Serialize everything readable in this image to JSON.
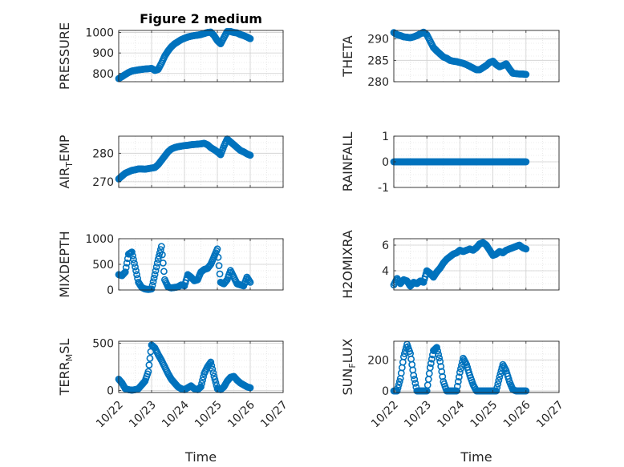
{
  "figure": {
    "title": "Figure 2 medium",
    "marker_color": "#0072BD"
  },
  "chart_data": [
    {
      "type": "scatter",
      "title": "Figure 2 medium",
      "ylabel": "PRESSURE",
      "ylabel_sub": "",
      "ylim": [
        760,
        1010
      ],
      "yticks": [
        800,
        900,
        1000
      ],
      "xlim": [
        0,
        5
      ],
      "xticks": [],
      "xlabel": "",
      "grid": true,
      "x": [
        0,
        0.1,
        0.2,
        0.3,
        0.4,
        0.5,
        0.6,
        0.7,
        0.8,
        0.9,
        1.0,
        1.1,
        1.2,
        1.3,
        1.4,
        1.5,
        1.6,
        1.7,
        1.8,
        1.9,
        2.0,
        2.1,
        2.2,
        2.3,
        2.4,
        2.5,
        2.6,
        2.7,
        2.8,
        2.9,
        3.0,
        3.1,
        3.2,
        3.3,
        3.4,
        3.5,
        3.6,
        3.7,
        3.8,
        3.9,
        4.0
      ],
      "y": [
        775,
        785,
        795,
        805,
        812,
        815,
        818,
        820,
        822,
        823,
        825,
        815,
        820,
        850,
        885,
        910,
        930,
        945,
        955,
        965,
        972,
        978,
        982,
        985,
        987,
        990,
        995,
        1000,
        1002,
        985,
        960,
        945,
        975,
        1005,
        1005,
        1000,
        998,
        990,
        985,
        978,
        970
      ]
    },
    {
      "type": "scatter",
      "title": "",
      "ylabel": "THETA",
      "ylabel_sub": "",
      "ylim": [
        280,
        292
      ],
      "yticks": [
        280,
        285,
        290
      ],
      "xlim": [
        0,
        5
      ],
      "xticks": [],
      "xlabel": "",
      "grid": true,
      "x": [
        0,
        0.1,
        0.2,
        0.3,
        0.4,
        0.5,
        0.6,
        0.7,
        0.8,
        0.9,
        1.0,
        1.1,
        1.2,
        1.3,
        1.4,
        1.5,
        1.6,
        1.7,
        1.8,
        1.9,
        2.0,
        2.1,
        2.2,
        2.3,
        2.4,
        2.5,
        2.6,
        2.7,
        2.8,
        2.9,
        3.0,
        3.1,
        3.2,
        3.3,
        3.4,
        3.5,
        3.6,
        3.7,
        3.8,
        3.9,
        4.0
      ],
      "y": [
        291.5,
        291,
        290.8,
        290.5,
        290.4,
        290.3,
        290.5,
        290.8,
        291.2,
        291.6,
        291.0,
        289.5,
        288.0,
        287.2,
        286.5,
        285.8,
        285.5,
        285.0,
        284.8,
        284.7,
        284.5,
        284.3,
        284.0,
        283.6,
        283.2,
        282.8,
        282.8,
        283.3,
        283.8,
        284.5,
        284.8,
        284.0,
        283.5,
        283.8,
        284.2,
        283.0,
        282.0,
        281.9,
        281.8,
        281.8,
        281.7
      ]
    },
    {
      "type": "scatter",
      "title": "",
      "ylabel": "AIR",
      "ylabel_sub": "T",
      "ylabel_post": "EMP",
      "ylim": [
        268,
        286
      ],
      "yticks": [
        270,
        280
      ],
      "xlim": [
        0,
        5
      ],
      "xticks": [],
      "xlabel": "",
      "grid": true,
      "x": [
        0,
        0.1,
        0.2,
        0.3,
        0.4,
        0.5,
        0.6,
        0.7,
        0.8,
        0.9,
        1.0,
        1.1,
        1.2,
        1.3,
        1.4,
        1.5,
        1.6,
        1.7,
        1.8,
        1.9,
        2.0,
        2.1,
        2.2,
        2.3,
        2.4,
        2.5,
        2.6,
        2.7,
        2.8,
        2.9,
        3.0,
        3.1,
        3.2,
        3.3,
        3.4,
        3.5,
        3.6,
        3.7,
        3.8,
        3.9,
        4.0
      ],
      "y": [
        271,
        272,
        273,
        273.5,
        274,
        274.2,
        274.5,
        274.5,
        274.4,
        274.6,
        274.8,
        275,
        276,
        277.5,
        279,
        280.5,
        281.5,
        282,
        282.3,
        282.5,
        282.7,
        282.8,
        283,
        283.1,
        283.2,
        283.3,
        283.5,
        283,
        282,
        281.3,
        280.5,
        279.5,
        282.5,
        285,
        284,
        283,
        282,
        281,
        280.5,
        279.8,
        279.3
      ]
    },
    {
      "type": "scatter",
      "title": "",
      "ylabel": "RAINFALL",
      "ylabel_sub": "",
      "ylim": [
        -1,
        1
      ],
      "yticks": [
        -1,
        0,
        1
      ],
      "xlim": [
        0,
        5
      ],
      "xticks": [],
      "xlabel": "",
      "grid": true,
      "x": [
        0,
        0.1,
        0.2,
        0.3,
        0.4,
        0.5,
        0.6,
        0.7,
        0.8,
        0.9,
        1.0,
        1.1,
        1.2,
        1.3,
        1.4,
        1.5,
        1.6,
        1.7,
        1.8,
        1.9,
        2.0,
        2.1,
        2.2,
        2.3,
        2.4,
        2.5,
        2.6,
        2.7,
        2.8,
        2.9,
        3.0,
        3.1,
        3.2,
        3.3,
        3.4,
        3.5,
        3.6,
        3.7,
        3.8,
        3.9,
        4.0
      ],
      "y": [
        0,
        0,
        0,
        0,
        0,
        0,
        0,
        0,
        0,
        0,
        0,
        0,
        0,
        0,
        0,
        0,
        0,
        0,
        0,
        0,
        0,
        0,
        0,
        0,
        0,
        0,
        0,
        0,
        0,
        0,
        0,
        0,
        0,
        0,
        0,
        0,
        0,
        0,
        0,
        0,
        0
      ]
    },
    {
      "type": "scatter",
      "title": "",
      "ylabel": "MIXDEPTH",
      "ylabel_sub": "",
      "ylim": [
        0,
        1000
      ],
      "yticks": [
        0,
        500,
        1000
      ],
      "xlim": [
        0,
        5
      ],
      "xticks": [],
      "xlabel": "",
      "grid": true,
      "x": [
        0,
        0.1,
        0.2,
        0.3,
        0.4,
        0.5,
        0.6,
        0.7,
        0.8,
        0.9,
        1.0,
        1.1,
        1.2,
        1.3,
        1.4,
        1.5,
        1.6,
        1.7,
        1.8,
        1.9,
        2.0,
        2.1,
        2.2,
        2.3,
        2.4,
        2.5,
        2.6,
        2.7,
        2.8,
        2.9,
        3.0,
        3.1,
        3.2,
        3.3,
        3.4,
        3.5,
        3.6,
        3.7,
        3.8,
        3.9,
        4.0
      ],
      "y": [
        300,
        280,
        350,
        700,
        740,
        450,
        150,
        50,
        20,
        10,
        20,
        300,
        600,
        850,
        200,
        60,
        40,
        50,
        60,
        100,
        80,
        300,
        250,
        180,
        200,
        350,
        400,
        420,
        500,
        650,
        800,
        150,
        120,
        200,
        380,
        250,
        120,
        100,
        80,
        250,
        150
      ]
    },
    {
      "type": "scatter",
      "title": "",
      "ylabel": "H2OMIXRA",
      "ylabel_sub": "",
      "ylim": [
        2.5,
        6.5
      ],
      "yticks": [
        4,
        6
      ],
      "xlim": [
        0,
        5
      ],
      "xticks": [],
      "xlabel": "",
      "grid": true,
      "x": [
        0,
        0.1,
        0.2,
        0.3,
        0.4,
        0.5,
        0.6,
        0.7,
        0.8,
        0.9,
        1.0,
        1.1,
        1.2,
        1.3,
        1.4,
        1.5,
        1.6,
        1.7,
        1.8,
        1.9,
        2.0,
        2.1,
        2.2,
        2.3,
        2.4,
        2.5,
        2.6,
        2.7,
        2.8,
        2.9,
        3.0,
        3.1,
        3.2,
        3.3,
        3.4,
        3.5,
        3.6,
        3.7,
        3.8,
        3.9,
        4.0
      ],
      "y": [
        2.9,
        3.4,
        3.0,
        3.3,
        3.2,
        2.8,
        3.1,
        3.0,
        3.2,
        3.1,
        4.0,
        3.8,
        3.5,
        3.9,
        4.2,
        4.6,
        4.9,
        5.1,
        5.3,
        5.4,
        5.6,
        5.5,
        5.6,
        5.7,
        5.6,
        5.8,
        6.1,
        6.2,
        6.0,
        5.6,
        5.2,
        5.3,
        5.5,
        5.4,
        5.6,
        5.7,
        5.8,
        5.9,
        6.0,
        5.8,
        5.7
      ]
    },
    {
      "type": "scatter",
      "title": "",
      "ylabel": "TERR",
      "ylabel_sub": "M",
      "ylabel_post": "SL",
      "ylim": [
        -20,
        520
      ],
      "yticks": [
        0,
        500
      ],
      "xlim": [
        0,
        5
      ],
      "xticks": [
        "10/22",
        "10/23",
        "10/24",
        "10/25",
        "10/26",
        "10/27"
      ],
      "xlabel": "Time",
      "grid": true,
      "x": [
        0,
        0.1,
        0.2,
        0.3,
        0.4,
        0.5,
        0.6,
        0.7,
        0.8,
        0.9,
        1.0,
        1.1,
        1.2,
        1.3,
        1.4,
        1.5,
        1.6,
        1.7,
        1.8,
        1.9,
        2.0,
        2.1,
        2.2,
        2.3,
        2.4,
        2.5,
        2.6,
        2.7,
        2.8,
        2.9,
        3.0,
        3.1,
        3.2,
        3.3,
        3.4,
        3.5,
        3.6,
        3.7,
        3.8,
        3.9,
        4.0
      ],
      "y": [
        120,
        80,
        20,
        10,
        5,
        10,
        20,
        60,
        100,
        200,
        480,
        450,
        380,
        320,
        250,
        180,
        120,
        80,
        40,
        20,
        10,
        30,
        50,
        20,
        10,
        40,
        180,
        250,
        300,
        150,
        20,
        10,
        40,
        100,
        140,
        150,
        110,
        80,
        60,
        40,
        30
      ]
    },
    {
      "type": "scatter",
      "title": "",
      "ylabel": "SUN",
      "ylabel_sub": "F",
      "ylabel_post": "LUX",
      "ylim": [
        -10,
        320
      ],
      "yticks": [
        0,
        200
      ],
      "xlim": [
        0,
        5
      ],
      "xticks": [
        "10/22",
        "10/23",
        "10/24",
        "10/25",
        "10/26",
        "10/27"
      ],
      "xlabel": "Time",
      "grid": true,
      "x": [
        0,
        0.1,
        0.2,
        0.3,
        0.4,
        0.5,
        0.6,
        0.7,
        0.8,
        0.9,
        1.0,
        1.1,
        1.2,
        1.3,
        1.4,
        1.5,
        1.6,
        1.7,
        1.8,
        1.9,
        2.0,
        2.1,
        2.2,
        2.3,
        2.4,
        2.5,
        2.6,
        2.7,
        2.8,
        2.9,
        3.0,
        3.1,
        3.2,
        3.3,
        3.4,
        3.5,
        3.6,
        3.7,
        3.8,
        3.9,
        4.0
      ],
      "y": [
        0,
        0,
        80,
        220,
        300,
        240,
        100,
        0,
        0,
        0,
        0,
        150,
        260,
        280,
        190,
        60,
        0,
        0,
        0,
        0,
        120,
        210,
        170,
        100,
        40,
        0,
        0,
        0,
        0,
        0,
        0,
        0,
        90,
        170,
        130,
        60,
        10,
        0,
        0,
        0,
        0
      ]
    }
  ]
}
